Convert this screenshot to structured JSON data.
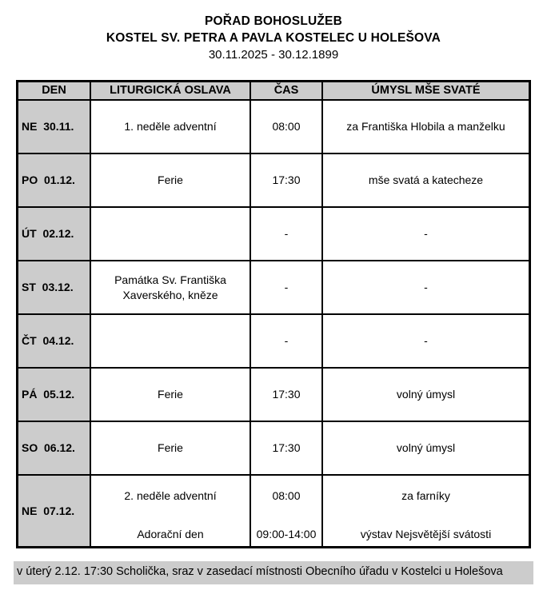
{
  "title": {
    "line1": "POŘAD BOHOSLUŽEB",
    "line2": "KOSTEL SV. PETRA A PAVLA KOSTELEC U HOLEŠOVA",
    "date_range": "30.11.2025 - 30.12.1899"
  },
  "table": {
    "headers": {
      "day": "DEN",
      "celebration": "LITURGICKÁ OSLAVA",
      "time": "ČAS",
      "intention": "ÚMYSL MŠE SVATÉ"
    },
    "rows": [
      {
        "day": "NE  30.11.",
        "celebration": "1. neděle adventní",
        "time": "08:00",
        "intention": "za Františka Hlobila a manželku"
      },
      {
        "day": "PO  01.12.",
        "celebration": "Ferie",
        "time": "17:30",
        "intention": "mše svatá a katecheze"
      },
      {
        "day": "ÚT  02.12.",
        "celebration": "",
        "time": "-",
        "intention": "-"
      },
      {
        "day": "ST  03.12.",
        "celebration": "Památka Sv. Františka Xaverského, kněze",
        "time": "-",
        "intention": "-"
      },
      {
        "day": "ČT  04.12.",
        "celebration": "",
        "time": "-",
        "intention": "-"
      },
      {
        "day": "PÁ  05.12.",
        "celebration": "Ferie",
        "time": "17:30",
        "intention": "volný úmysl"
      },
      {
        "day": "SO  06.12.",
        "celebration": "Ferie",
        "time": "17:30",
        "intention": "volný úmysl"
      },
      {
        "day": "NE  07.12.",
        "celebration": "2. neděle adventní",
        "time": "08:00",
        "intention": "za farníky",
        "celebration2": "Adorační den",
        "time2": "09:00-14:00",
        "intention2": "výstav Nejsvětější svátosti"
      }
    ]
  },
  "footer": {
    "note": "v úterý 2.12. 17:30 Scholička, sraz v zasedací místnosti Obecního úřadu v Kostelci u Holešova"
  },
  "colors": {
    "cell_gray": "#cccccc",
    "border": "#000000"
  }
}
